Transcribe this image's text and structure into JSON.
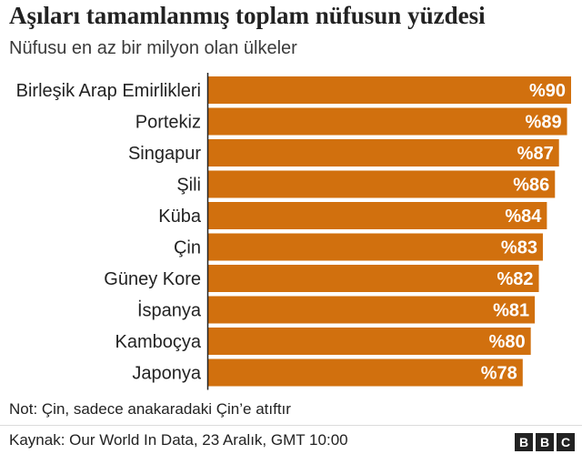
{
  "header": {
    "title": "Aşıları tamamlanmış toplam nüfusun yüzdesi",
    "subtitle": "Nüfusu en az bir milyon olan ülkeler"
  },
  "footer": {
    "note": "Not: Çin, sadece anakaradaki Çin’e atıftır",
    "source": "Kaynak: Our World In Data, 23 Aralık, GMT 10:00",
    "logo_letters": [
      "B",
      "B",
      "C"
    ]
  },
  "colors": {
    "bar": "#d1700e",
    "label_text": "#ffffff",
    "axis_line": "#222222"
  },
  "chart_data": {
    "type": "bar",
    "orientation": "horizontal",
    "title": "Aşıları tamamlanmış toplam nüfusun yüzdesi",
    "subtitle": "Nüfusu en az bir milyon olan ülkeler",
    "categories": [
      "Birleşik Arap Emirlikleri",
      "Portekiz",
      "Singapur",
      "Şili",
      "Küba",
      "Çin",
      "Güney Kore",
      "İspanya",
      "Kamboçya",
      "Japonya"
    ],
    "values": [
      90,
      89,
      87,
      86,
      84,
      83,
      82,
      81,
      80,
      78
    ],
    "value_labels": [
      "%90",
      "%89",
      "%87",
      "%86",
      "%84",
      "%83",
      "%82",
      "%81",
      "%80",
      "%78"
    ],
    "xlim": [
      0,
      90
    ],
    "unit": "%",
    "grid": false,
    "legend": "none"
  }
}
